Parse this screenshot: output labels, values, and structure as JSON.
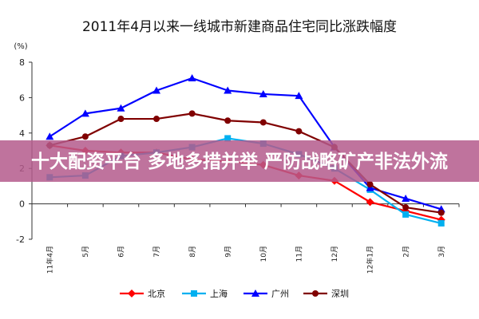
{
  "chart_data": {
    "type": "line",
    "title": "2011年4月以来一线城市新建商品住宅同比涨跌幅度",
    "unit": "(%)",
    "ylim": [
      -2,
      8
    ],
    "yticks": [
      "-2",
      "0",
      "2",
      "4",
      "6",
      "8"
    ],
    "categories": [
      "11年4月",
      "5月",
      "6月",
      "7月",
      "8月",
      "9月",
      "10月",
      "11月",
      "12月",
      "12年1月",
      "2月",
      "3月"
    ],
    "series": [
      {
        "name": "北京",
        "color": "#ff0000",
        "marker": "diamond",
        "values": [
          3.3,
          3.0,
          2.9,
          2.9,
          2.5,
          2.4,
          2.2,
          1.6,
          1.3,
          0.1,
          -0.4,
          -0.9
        ]
      },
      {
        "name": "上海",
        "color": "#00b0f0",
        "marker": "square",
        "values": [
          1.5,
          1.6,
          2.7,
          2.9,
          3.2,
          3.7,
          3.4,
          2.8,
          2.0,
          0.8,
          -0.6,
          -1.1
        ]
      },
      {
        "name": "广州",
        "color": "#0000ff",
        "marker": "triangle",
        "values": [
          3.8,
          5.1,
          5.4,
          6.4,
          7.1,
          6.4,
          6.2,
          6.1,
          3.2,
          0.9,
          0.3,
          -0.3
        ]
      },
      {
        "name": "深圳",
        "color": "#800000",
        "marker": "circle",
        "values": [
          3.3,
          3.8,
          4.8,
          4.8,
          5.1,
          4.7,
          4.6,
          4.1,
          3.2,
          1.1,
          -0.2,
          -0.5
        ]
      }
    ],
    "grid": false,
    "legend_position": "bottom"
  },
  "overlay": {
    "banner_text": "十大配资平台 多地多措并举 严防战略矿产非法外流",
    "banner_color": "#b45a8c"
  }
}
